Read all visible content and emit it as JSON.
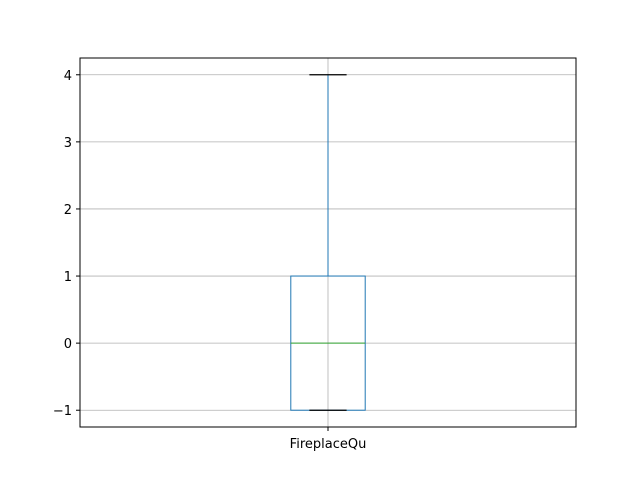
{
  "chart_data": {
    "type": "box",
    "categories": [
      "FireplaceQu"
    ],
    "boxes": [
      {
        "name": "FireplaceQu",
        "whisker_low": -1,
        "q1": -1,
        "median": 0,
        "q3": 1,
        "whisker_high": 4
      }
    ],
    "yticks": [
      -1,
      0,
      1,
      2,
      3,
      4
    ],
    "ytick_labels": [
      "−1",
      "0",
      "1",
      "2",
      "3",
      "4"
    ],
    "ylim": [
      -1.25,
      4.25
    ],
    "grid": true,
    "title": "",
    "xlabel": "",
    "ylabel": "",
    "colors": {
      "box": "#1f77b4",
      "median": "#2ca02c",
      "caps": "#000000",
      "grid": "#b0b0b0",
      "axes": "#000000"
    }
  }
}
